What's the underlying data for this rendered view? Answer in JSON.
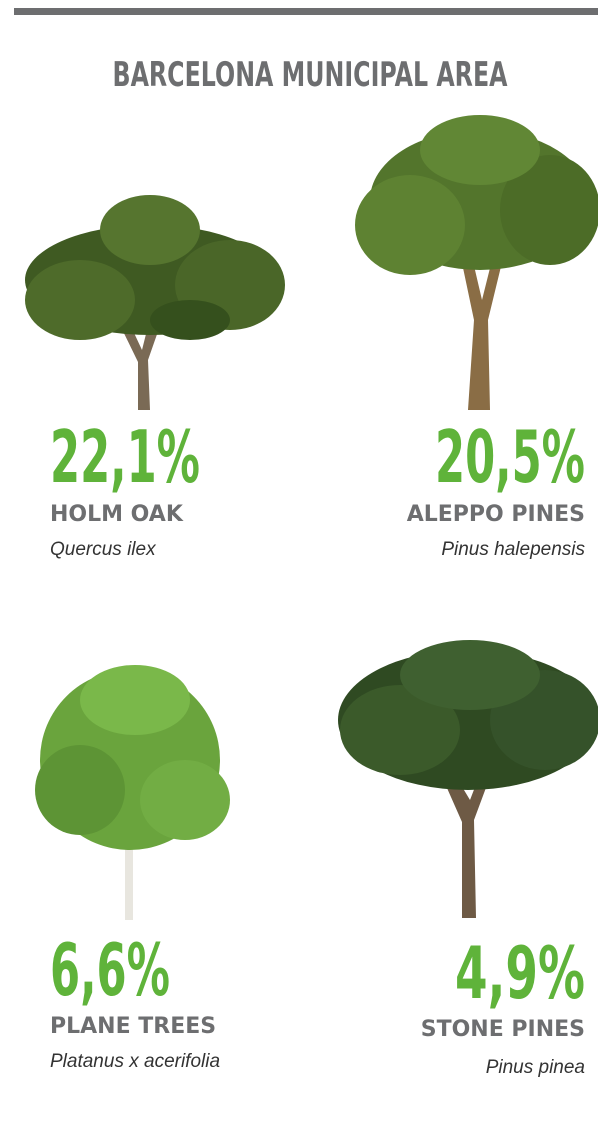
{
  "header": {
    "title": "BARCELONA MUNICIPAL AREA"
  },
  "items": [
    {
      "percent": "22,1%",
      "name": "HOLM OAK",
      "scientific_name": "Quercus ilex"
    },
    {
      "percent": "20,5%",
      "name": "ALEPPO PINES",
      "scientific_name": "Pinus halepensis"
    },
    {
      "percent": "6,6%",
      "name": "PLANE TREES",
      "scientific_name": "Platanus x acerifolia"
    },
    {
      "percent": "4,9%",
      "name": "STONE PINES",
      "scientific_name": "Pinus pinea"
    }
  ]
}
